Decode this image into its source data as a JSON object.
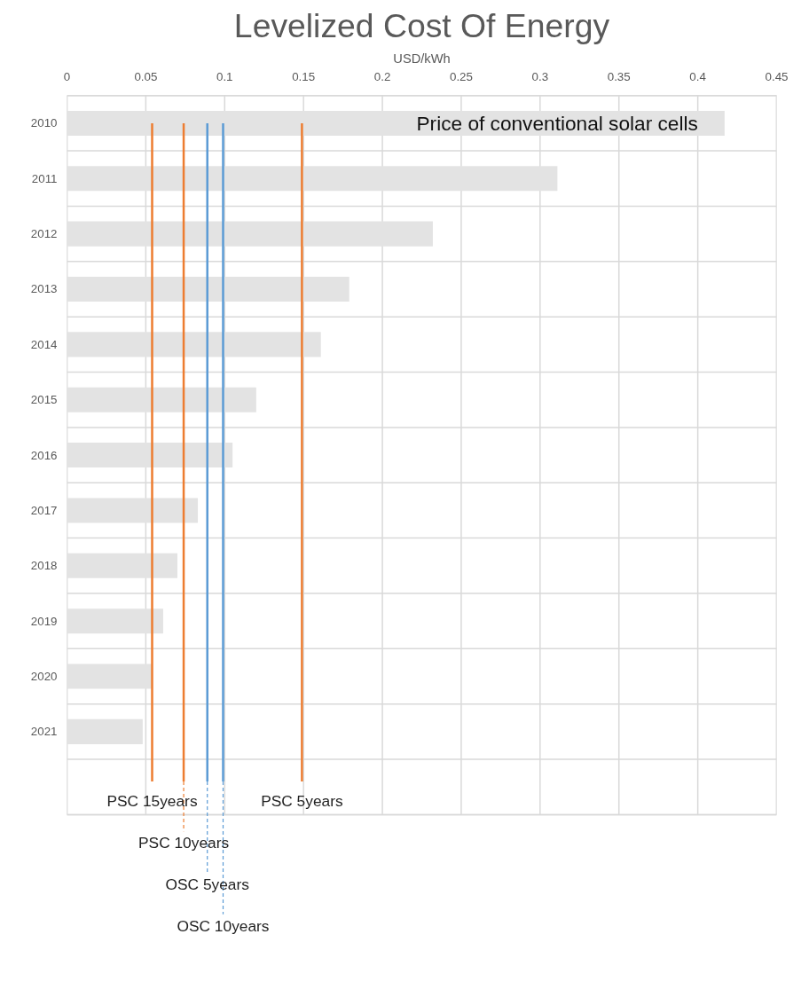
{
  "chart_data": {
    "type": "bar",
    "orientation": "horizontal",
    "title": "Levelized Cost Of Energy",
    "xlabel": "USD/kWh",
    "categories": [
      "2010",
      "2011",
      "2012",
      "2013",
      "2014",
      "2015",
      "2016",
      "2017",
      "2018",
      "2019",
      "2020",
      "2021",
      null
    ],
    "values": [
      0.417,
      0.311,
      0.232,
      0.179,
      0.161,
      0.12,
      0.105,
      0.083,
      0.07,
      0.061,
      0.054,
      0.048,
      null
    ],
    "color": "#e3e3e3",
    "xlim": [
      0,
      0.45
    ],
    "xticks": [
      0,
      0.05,
      0.1,
      0.15,
      0.2,
      0.25,
      0.3,
      0.35,
      0.4,
      0.45
    ],
    "grid": true,
    "ref_lines": [
      {
        "axis": "x",
        "value": 0.054,
        "label": "PSC 15years",
        "color": "#ed7d31"
      },
      {
        "axis": "x",
        "value": 0.074,
        "label": "PSC 10years",
        "color": "#ed7d31"
      },
      {
        "axis": "x",
        "value": 0.089,
        "label": "OSC 5years",
        "color": "#5b9bd5"
      },
      {
        "axis": "x",
        "value": 0.099,
        "label": "OSC 10years",
        "color": "#5b9bd5"
      },
      {
        "axis": "x",
        "value": 0.149,
        "label": "PSC 5years",
        "color": "#ed7d31"
      }
    ],
    "annotations": [
      {
        "text": "Price of conventional solar cells",
        "x": 0.417,
        "y": "2010"
      }
    ]
  }
}
